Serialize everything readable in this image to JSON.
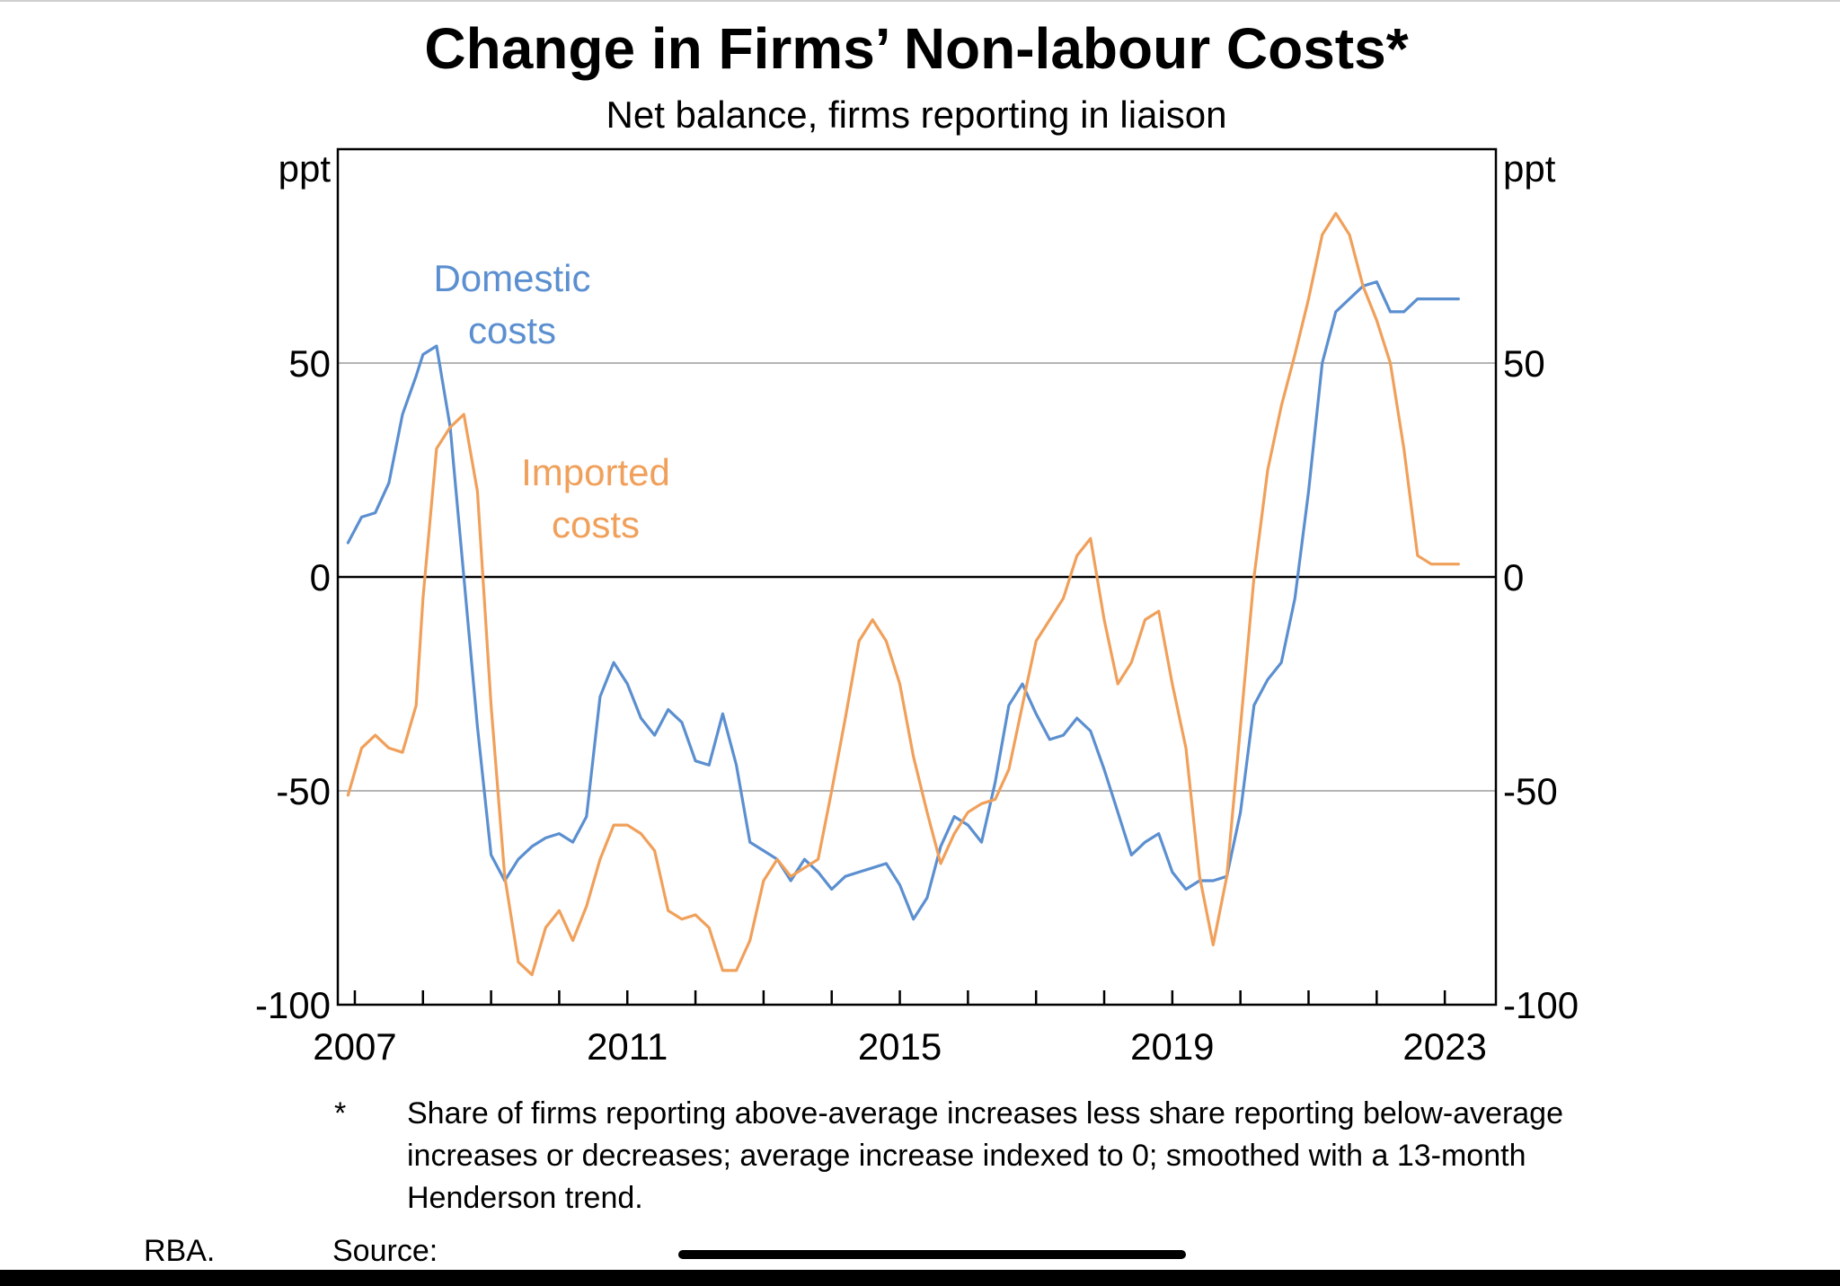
{
  "chart_data": {
    "type": "line",
    "title": "Change in Firms’ Non-labour Costs*",
    "subtitle": "Net balance, firms reporting in liaison",
    "ylabel_left": "ppt",
    "ylabel_right": "ppt",
    "ylim": [
      -100,
      100
    ],
    "yticks": [
      -100,
      -50,
      0,
      50
    ],
    "xlim": [
      2006.75,
      2023.75
    ],
    "xticks": [
      2007,
      2011,
      2015,
      2019,
      2023
    ],
    "grid": true,
    "colors": {
      "domestic": "#5b8fd0",
      "imported": "#f0a05a"
    },
    "series": [
      {
        "name": "Domestic costs",
        "label_lines": [
          "Domestic",
          "costs"
        ],
        "color": "#5b8fd0",
        "x": [
          2006.9,
          2007.1,
          2007.3,
          2007.5,
          2007.7,
          2007.9,
          2008.0,
          2008.2,
          2008.4,
          2008.6,
          2008.8,
          2009.0,
          2009.2,
          2009.4,
          2009.6,
          2009.8,
          2010.0,
          2010.2,
          2010.4,
          2010.6,
          2010.8,
          2011.0,
          2011.2,
          2011.4,
          2011.6,
          2011.8,
          2012.0,
          2012.2,
          2012.4,
          2012.6,
          2012.8,
          2013.0,
          2013.2,
          2013.4,
          2013.6,
          2013.8,
          2014.0,
          2014.2,
          2014.4,
          2014.6,
          2014.8,
          2015.0,
          2015.2,
          2015.4,
          2015.6,
          2015.8,
          2016.0,
          2016.2,
          2016.4,
          2016.6,
          2016.8,
          2017.0,
          2017.2,
          2017.4,
          2017.6,
          2017.8,
          2018.0,
          2018.2,
          2018.4,
          2018.6,
          2018.8,
          2019.0,
          2019.2,
          2019.4,
          2019.6,
          2019.8,
          2020.0,
          2020.2,
          2020.4,
          2020.6,
          2020.8,
          2021.0,
          2021.2,
          2021.4,
          2021.6,
          2021.8,
          2022.0,
          2022.2,
          2022.4,
          2022.6,
          2022.8,
          2023.0,
          2023.2
        ],
        "values": [
          8,
          14,
          15,
          22,
          38,
          47,
          52,
          54,
          35,
          0,
          -35,
          -65,
          -71,
          -66,
          -63,
          -61,
          -60,
          -62,
          -56,
          -28,
          -20,
          -25,
          -33,
          -37,
          -31,
          -34,
          -43,
          -44,
          -32,
          -44,
          -62,
          -64,
          -66,
          -71,
          -66,
          -69,
          -73,
          -70,
          -69,
          -68,
          -67,
          -72,
          -80,
          -75,
          -63,
          -56,
          -58,
          -62,
          -48,
          -30,
          -25,
          -32,
          -38,
          -37,
          -33,
          -36,
          -45,
          -55,
          -65,
          -62,
          -60,
          -69,
          -73,
          -71,
          -71,
          -70,
          -55,
          -30,
          -24,
          -20,
          -5,
          20,
          50,
          62,
          65,
          68,
          69,
          62,
          62,
          65,
          65,
          65,
          65
        ]
      },
      {
        "name": "Imported costs",
        "label_lines": [
          "Imported",
          "costs"
        ],
        "color": "#f0a05a",
        "x": [
          2006.9,
          2007.1,
          2007.3,
          2007.5,
          2007.7,
          2007.9,
          2008.0,
          2008.2,
          2008.4,
          2008.6,
          2008.8,
          2009.0,
          2009.2,
          2009.4,
          2009.6,
          2009.8,
          2010.0,
          2010.2,
          2010.4,
          2010.6,
          2010.8,
          2011.0,
          2011.2,
          2011.4,
          2011.6,
          2011.8,
          2012.0,
          2012.2,
          2012.4,
          2012.6,
          2012.8,
          2013.0,
          2013.2,
          2013.4,
          2013.6,
          2013.8,
          2014.0,
          2014.2,
          2014.4,
          2014.6,
          2014.8,
          2015.0,
          2015.2,
          2015.4,
          2015.6,
          2015.8,
          2016.0,
          2016.2,
          2016.4,
          2016.6,
          2016.8,
          2017.0,
          2017.2,
          2017.4,
          2017.6,
          2017.8,
          2018.0,
          2018.2,
          2018.4,
          2018.6,
          2018.8,
          2019.0,
          2019.2,
          2019.4,
          2019.6,
          2019.8,
          2020.0,
          2020.2,
          2020.4,
          2020.6,
          2020.8,
          2021.0,
          2021.2,
          2021.4,
          2021.6,
          2021.8,
          2022.0,
          2022.2,
          2022.4,
          2022.6,
          2022.8,
          2023.0,
          2023.2
        ],
        "values": [
          -51,
          -40,
          -37,
          -40,
          -41,
          -30,
          -5,
          30,
          35,
          38,
          20,
          -30,
          -70,
          -90,
          -93,
          -82,
          -78,
          -85,
          -77,
          -66,
          -58,
          -58,
          -60,
          -64,
          -78,
          -80,
          -79,
          -82,
          -92,
          -92,
          -85,
          -71,
          -66,
          -70,
          -68,
          -66,
          -50,
          -33,
          -15,
          -10,
          -15,
          -25,
          -42,
          -55,
          -67,
          -60,
          -55,
          -53,
          -52,
          -45,
          -30,
          -15,
          -10,
          -5,
          5,
          9,
          -10,
          -25,
          -20,
          -10,
          -8,
          -25,
          -40,
          -70,
          -86,
          -70,
          -35,
          0,
          25,
          40,
          52,
          65,
          80,
          85,
          80,
          68,
          60,
          50,
          30,
          5,
          3,
          3,
          3
        ]
      }
    ],
    "annotations": {
      "footnote_mark": "*",
      "footnote": "Share of firms reporting above-average increases less share reporting below-average increases or decreases; average increase indexed to 0; smoothed with a 13-month Henderson trend.",
      "source_label": "Source:",
      "source": "RBA."
    }
  }
}
